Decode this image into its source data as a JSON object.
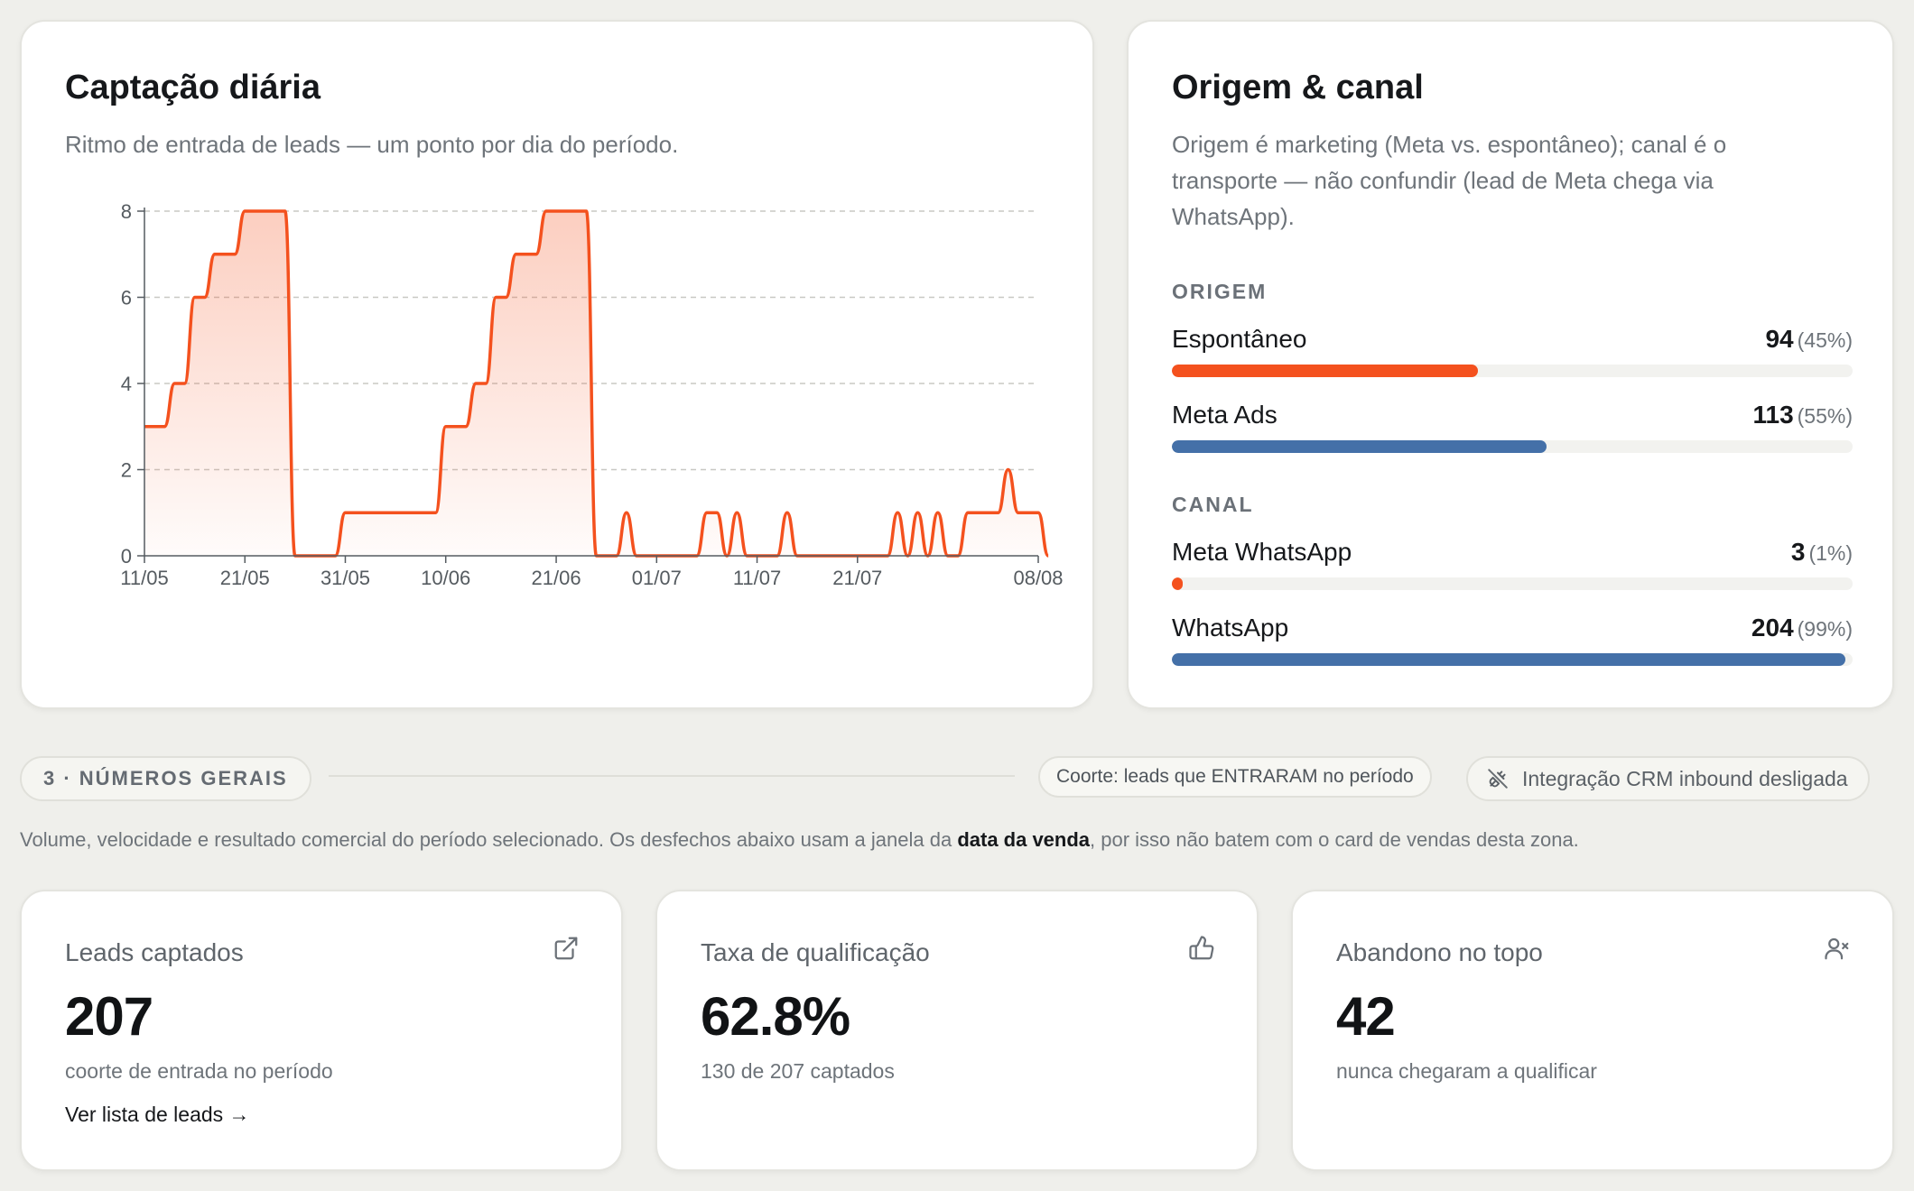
{
  "chart_card": {
    "title": "Captação diária",
    "subtitle": "Ritmo de entrada de leads — um ponto por dia do período."
  },
  "chart_data": {
    "type": "area",
    "title": "Captação diária",
    "x_tick_labels": [
      "11/05",
      "21/05",
      "31/05",
      "10/06",
      "21/06",
      "01/07",
      "11/07",
      "21/07",
      "08/08"
    ],
    "x_start": "2025-05-11",
    "x_end": "2025-08-08",
    "y_ticks": [
      0,
      2,
      4,
      6,
      8
    ],
    "ylim": [
      0,
      8
    ],
    "grid": true,
    "color": "#f4511e",
    "series": [
      {
        "name": "",
        "values": [
          3,
          3,
          3,
          4,
          4,
          6,
          6,
          7,
          7,
          7,
          8,
          8,
          8,
          8,
          8,
          0,
          0,
          0,
          0,
          0,
          1,
          1,
          1,
          1,
          1,
          1,
          1,
          1,
          1,
          1,
          3,
          3,
          3,
          4,
          4,
          6,
          6,
          7,
          7,
          7,
          8,
          8,
          8,
          8,
          8,
          0,
          0,
          0,
          1,
          0,
          0,
          0,
          0,
          0,
          0,
          0,
          1,
          1,
          0,
          1,
          0,
          0,
          0,
          0,
          1,
          0,
          0,
          0,
          0,
          0,
          0,
          0,
          0,
          0,
          0,
          1,
          0,
          1,
          0,
          1,
          0,
          0,
          1,
          1,
          1,
          1,
          2,
          1,
          1,
          1,
          0
        ]
      }
    ]
  },
  "origin_card": {
    "title": "Origem & canal",
    "subtitle_lines": [
      "Origem é marketing (Meta vs. espontâneo); canal é o",
      "transporte — não confundir (lead de Meta chega via",
      "WhatsApp)."
    ],
    "origem_label": "ORIGEM",
    "canal_label": "CANAL",
    "origem": [
      {
        "name": "Espontâneo",
        "value": "94",
        "pct": "(45%)",
        "fraction": 0.45,
        "color": "#f4511e"
      },
      {
        "name": "Meta Ads",
        "value": "113",
        "pct": "(55%)",
        "fraction": 0.55,
        "color": "#4470a8"
      }
    ],
    "canal": [
      {
        "name": "Meta WhatsApp",
        "value": "3",
        "pct": "(1%)",
        "fraction": 0.01,
        "color": "#f4511e"
      },
      {
        "name": "WhatsApp",
        "value": "204",
        "pct": "(99%)",
        "fraction": 0.99,
        "color": "#4470a8"
      }
    ]
  },
  "section": {
    "pill": "3 · NÚMEROS GERAIS",
    "cohort": "Coorte: leads que ENTRARAM no período",
    "crm": "Integração CRM inbound desligada",
    "desc_pre": "Volume, velocidade e resultado comercial do período selecionado. Os desfechos abaixo usam a janela da ",
    "desc_strong": "data da venda",
    "desc_post": ", por isso não batem com o card de vendas desta zona."
  },
  "kpis": [
    {
      "label": "Leads captados",
      "value": "207",
      "note": "coorte de entrada no período",
      "link": "Ver lista de leads →",
      "icon": "external-link-icon"
    },
    {
      "label": "Taxa de qualificação",
      "value": "62.8%",
      "note": "130 de 207 captados",
      "icon": "thumbs-up-icon"
    },
    {
      "label": "Abandono no topo",
      "value": "42",
      "note": "nunca chegaram a qualificar",
      "icon": "user-x-icon"
    }
  ]
}
